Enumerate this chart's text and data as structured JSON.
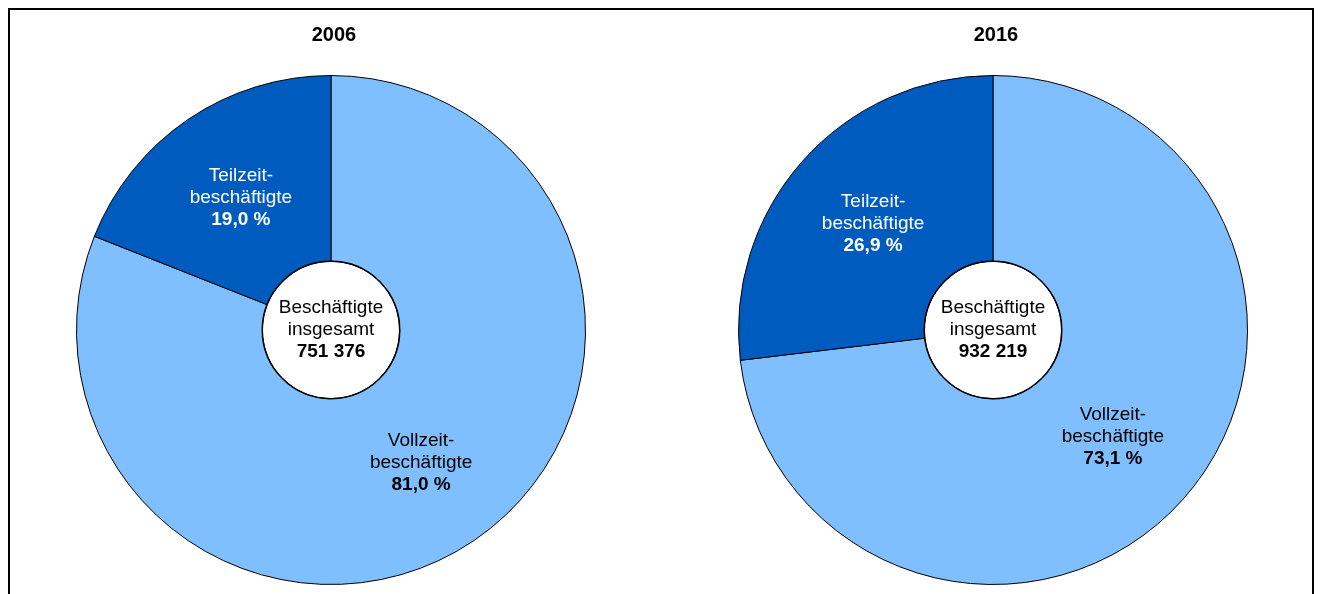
{
  "chart_data": [
    {
      "type": "donut",
      "title": "2006",
      "categories": [
        "Vollzeit-\nbeschäftigte",
        "Teilzeit-\nbeschäftigte"
      ],
      "values": [
        81.0,
        19.0
      ],
      "value_labels": [
        "81,0 %",
        "19,0 %"
      ],
      "colors": [
        "#80bfff",
        "#005bbf"
      ],
      "annotations": [
        "Beschäftigte\ninsgesamt",
        "751 376"
      ],
      "legend": false
    },
    {
      "type": "donut",
      "title": "2016",
      "categories": [
        "Vollzeit-\nbeschäftigte",
        "Teilzeit-\nbeschäftigte"
      ],
      "values": [
        73.1,
        26.9
      ],
      "value_labels": [
        "73,1 %",
        "26,9 %"
      ],
      "colors": [
        "#80bfff",
        "#005bbf"
      ],
      "annotations": [
        "Beschäftigte\ninsgesamt",
        "932 219"
      ],
      "legend": false
    }
  ]
}
